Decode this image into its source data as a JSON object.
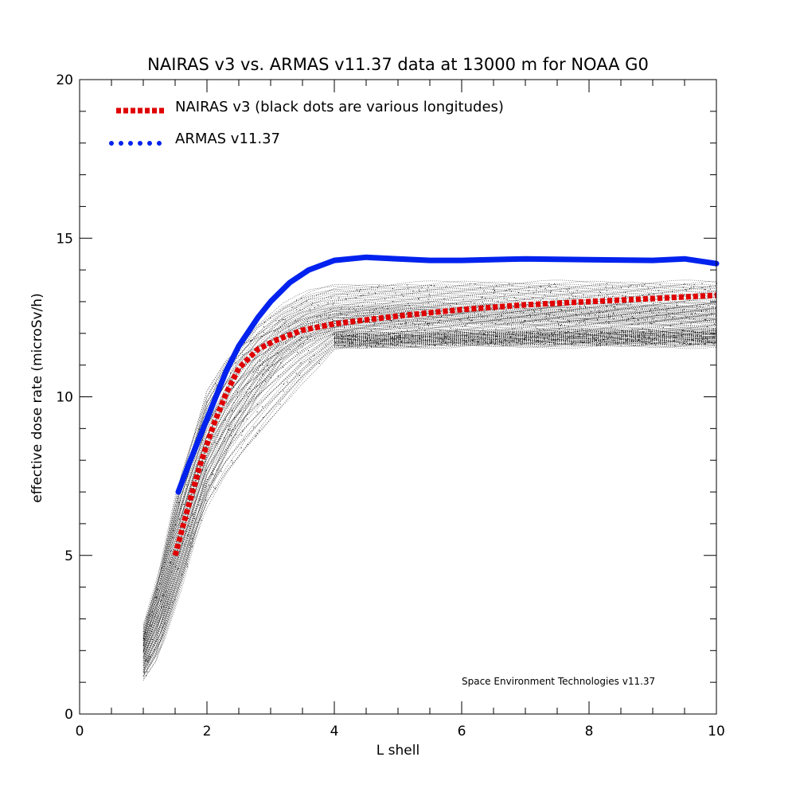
{
  "chart_data": {
    "type": "line",
    "title": "NAIRAS  v3 vs. ARMAS v11.37 data at 13000 m for NOAA G0",
    "xlabel": "L shell",
    "ylabel": "effective dose rate (microSv/h)",
    "xlim": [
      0,
      10
    ],
    "ylim": [
      0,
      20
    ],
    "x_ticks": [
      0,
      2,
      4,
      6,
      8,
      10
    ],
    "y_ticks": [
      0,
      5,
      10,
      15,
      20
    ],
    "x_minor_step": 0.5,
    "y_minor_step": 1,
    "grid": false,
    "legend_position": "top-left",
    "credit": "Space Environment Technologies v11.37",
    "series": [
      {
        "name": "NAIRAS v3 (black dots are various longitudes)",
        "style": "dotted",
        "color": "#e00000",
        "x": [
          1.5,
          1.7,
          1.9,
          2.1,
          2.3,
          2.5,
          2.8,
          3.1,
          3.5,
          4.0,
          5.0,
          6.0,
          7.0,
          8.0,
          9.0,
          10.0
        ],
        "y": [
          5.0,
          6.5,
          7.9,
          9.1,
          10.1,
          10.9,
          11.5,
          11.8,
          12.1,
          12.3,
          12.55,
          12.75,
          12.9,
          13.0,
          13.1,
          13.2
        ]
      },
      {
        "name": "ARMAS v11.37",
        "style": "solid",
        "color": "#0022ee",
        "x": [
          1.55,
          1.7,
          1.9,
          2.1,
          2.3,
          2.5,
          2.8,
          3.0,
          3.3,
          3.6,
          4.0,
          4.5,
          5.0,
          5.5,
          6.0,
          7.0,
          8.0,
          9.0,
          9.5,
          10.0
        ],
        "y": [
          7.0,
          7.8,
          8.8,
          9.8,
          10.8,
          11.6,
          12.5,
          13.0,
          13.6,
          14.0,
          14.3,
          14.4,
          14.35,
          14.3,
          14.3,
          14.35,
          14.32,
          14.3,
          14.35,
          14.2
        ]
      }
    ],
    "scatter_note": "black dots are various longitudes",
    "scatter_bands": [
      {
        "x": [
          1.0,
          1.2,
          1.5,
          1.8,
          2.0,
          2.3,
          2.6,
          3.0,
          3.5,
          4.0,
          5.0,
          6.0,
          7.0,
          8.0,
          9.0,
          10.0
        ],
        "y_low": [
          1.1,
          1.7,
          3.5,
          5.5,
          6.5,
          7.5,
          8.3,
          9.3,
          10.5,
          11.5,
          11.6,
          11.6,
          11.6,
          11.6,
          11.6,
          11.6
        ],
        "y_high": [
          2.5,
          4.0,
          6.8,
          8.8,
          10.2,
          11.2,
          11.8,
          12.2,
          12.6,
          12.8,
          12.9,
          12.9,
          12.9,
          12.9,
          12.9,
          12.9
        ]
      },
      {
        "x": [
          1.0,
          1.3,
          1.6,
          2.0,
          2.4,
          2.8,
          3.2,
          3.6,
          4.0,
          5.0,
          6.0,
          7.0,
          8.0,
          9.0,
          10.0
        ],
        "y_low": [
          1.2,
          2.2,
          4.0,
          6.8,
          8.6,
          10.0,
          11.2,
          11.8,
          12.0,
          12.2,
          12.3,
          12.3,
          12.3,
          12.3,
          12.3
        ],
        "y_high": [
          2.8,
          4.8,
          7.5,
          10.0,
          11.4,
          12.3,
          12.9,
          13.3,
          13.5,
          13.55,
          13.6,
          13.6,
          13.6,
          13.6,
          13.6
        ]
      },
      {
        "x": [
          4.0,
          5.0,
          6.0,
          7.0,
          8.0,
          9.0,
          10.0
        ],
        "y_low": [
          11.6,
          11.6,
          11.65,
          11.65,
          11.65,
          11.65,
          11.65
        ],
        "y_high": [
          12.0,
          12.0,
          12.05,
          12.05,
          12.1,
          12.1,
          12.1
        ]
      }
    ]
  }
}
